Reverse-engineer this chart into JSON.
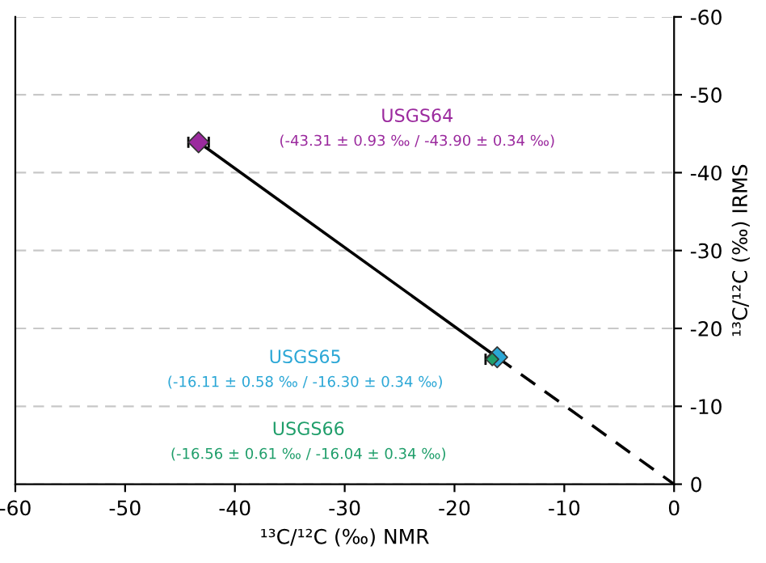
{
  "chart_data": {
    "type": "scatter",
    "xlabel": "¹³C/¹²C (‰) NMR",
    "ylabel": "¹³C/¹²C (‰) IRMS",
    "xlim": [
      -60,
      0
    ],
    "xticks": [
      -60,
      -50,
      -40,
      -30,
      -20,
      -10,
      0
    ],
    "ylim": [
      0,
      -60
    ],
    "yticks": [
      0,
      -10,
      -20,
      -30,
      -40,
      -50,
      -60
    ],
    "grid": "y",
    "marker": "diamond",
    "legend": false,
    "series": [
      {
        "type": "line",
        "color": "#000000",
        "line_style": "solid",
        "marker": "none",
        "x": [
          -43.31,
          -16.11
        ],
        "values": [
          -43.9,
          -16.3
        ]
      },
      {
        "type": "line",
        "color": "#000000",
        "line_style": "dashed",
        "marker": "none",
        "x": [
          -16.11,
          0
        ],
        "values": [
          -16.3,
          0
        ]
      },
      {
        "name": "USGS64",
        "color": "#9b2a9e",
        "x": [
          -43.31
        ],
        "values": [
          -43.9
        ],
        "xerrors": [
          0.93
        ]
      },
      {
        "name": "USGS65",
        "color": "#2ba7d6",
        "x": [
          -16.11
        ],
        "values": [
          -16.3
        ],
        "xerrors": [
          0.58
        ]
      },
      {
        "name": "USGS66",
        "color": "#1f9e6a",
        "x": [
          -16.56
        ],
        "values": [
          -16.04
        ],
        "xerrors": [
          0.61
        ]
      }
    ],
    "annotations": [
      "(-43.31 ± 0.93 ‰ / -43.90 ± 0.34 ‰)",
      "(-16.11 ± 0.58 ‰ / -16.30 ± 0.34 ‰)",
      "(-16.56 ± 0.61 ‰ / -16.04 ± 0.34 ‰)"
    ]
  }
}
